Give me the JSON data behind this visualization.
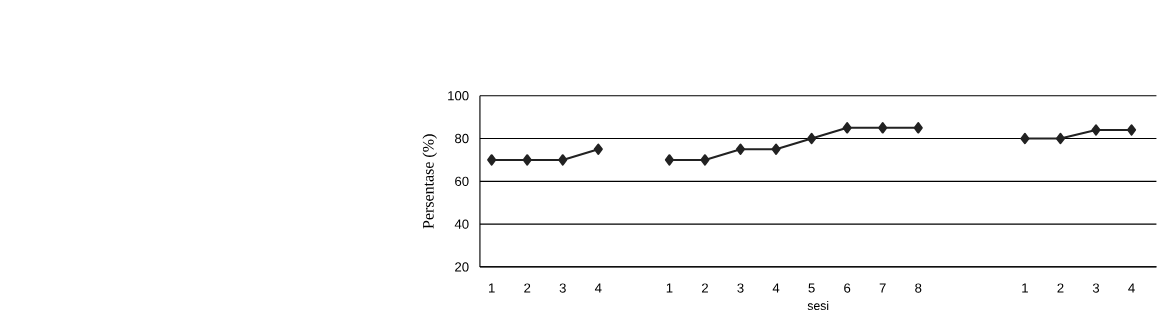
{
  "chart_data": {
    "type": "line",
    "xlabel": "sesi",
    "ylabel": "Persentase (%)",
    "categories": [
      "1",
      "2",
      "3",
      "4",
      null,
      "1",
      "2",
      "3",
      "4",
      "5",
      "6",
      "7",
      "8",
      null,
      null,
      "1",
      "2",
      "3",
      "4"
    ],
    "series": [
      {
        "color": "#222222",
        "values": [
          70,
          70,
          70,
          75,
          null,
          70,
          70,
          75,
          75,
          80,
          85,
          85,
          85,
          null,
          null,
          80,
          80,
          84,
          84
        ]
      }
    ],
    "ylim": [
      20,
      100
    ],
    "yticks": [
      20,
      40,
      60,
      80,
      100
    ],
    "grid": "y",
    "marker": "diamond",
    "line_style": "solid"
  }
}
